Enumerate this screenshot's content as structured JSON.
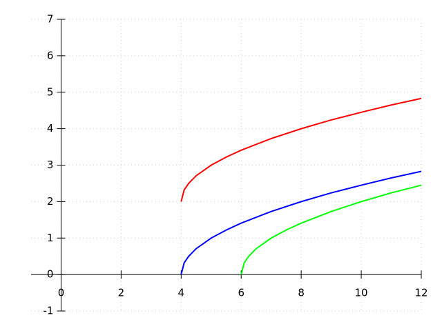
{
  "chart_data": {
    "type": "line",
    "xlim": [
      -1,
      12
    ],
    "ylim": [
      -1,
      7
    ],
    "xticks": [
      0,
      2,
      4,
      6,
      8,
      10,
      12
    ],
    "yticks": [
      -1,
      0,
      1,
      2,
      3,
      4,
      5,
      6,
      7
    ],
    "grid": true,
    "series": [
      {
        "color": "#ff0000",
        "x": [
          4,
          4.1,
          4.25,
          4.5,
          5,
          5.5,
          6,
          7,
          8,
          9,
          10,
          11,
          12
        ],
        "values": [
          2,
          2.32,
          2.5,
          2.71,
          3,
          3.22,
          3.41,
          3.73,
          4,
          4.24,
          4.45,
          4.65,
          4.83
        ]
      },
      {
        "color": "#0000ff",
        "x": [
          4,
          4.1,
          4.25,
          4.5,
          5,
          5.5,
          6,
          7,
          8,
          9,
          10,
          11,
          12
        ],
        "values": [
          0,
          0.32,
          0.5,
          0.71,
          1,
          1.22,
          1.41,
          1.73,
          2,
          2.24,
          2.45,
          2.65,
          2.83
        ]
      },
      {
        "color": "#00ff00",
        "x": [
          6,
          6.1,
          6.25,
          6.5,
          7,
          7.5,
          8,
          9,
          10,
          11,
          12
        ],
        "values": [
          0,
          0.32,
          0.5,
          0.71,
          1,
          1.22,
          1.41,
          1.73,
          2,
          2.24,
          2.45
        ]
      }
    ]
  }
}
